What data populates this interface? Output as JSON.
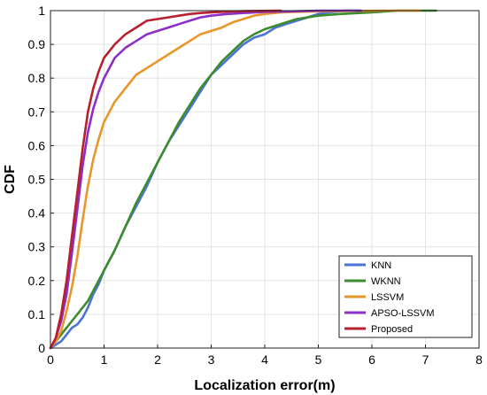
{
  "chart_data": {
    "type": "line",
    "xlabel": "Localization error(m)",
    "ylabel": "CDF",
    "xlim": [
      0,
      8
    ],
    "ylim": [
      0,
      1
    ],
    "xticks": [
      "0",
      "1",
      "2",
      "3",
      "4",
      "5",
      "6",
      "7",
      "8"
    ],
    "yticks": [
      "0",
      "0.1",
      "0.2",
      "0.3",
      "0.4",
      "0.5",
      "0.6",
      "0.7",
      "0.8",
      "0.9",
      "1"
    ],
    "grid": true,
    "legend_position": "bottom-right",
    "series": [
      {
        "name": "KNN",
        "color": "#4a72d8",
        "x": [
          0,
          0.1,
          0.2,
          0.3,
          0.4,
          0.5,
          0.6,
          0.7,
          0.8,
          0.9,
          1.0,
          1.2,
          1.4,
          1.6,
          1.8,
          2.0,
          2.2,
          2.4,
          2.6,
          2.8,
          3.0,
          3.2,
          3.4,
          3.6,
          3.8,
          4.0,
          4.2,
          4.4,
          4.6,
          4.8,
          5.0,
          5.2,
          5.5,
          5.8
        ],
        "y": [
          0,
          0.01,
          0.02,
          0.04,
          0.06,
          0.07,
          0.09,
          0.12,
          0.16,
          0.19,
          0.23,
          0.29,
          0.36,
          0.42,
          0.48,
          0.55,
          0.61,
          0.66,
          0.71,
          0.76,
          0.81,
          0.84,
          0.87,
          0.9,
          0.92,
          0.93,
          0.95,
          0.96,
          0.97,
          0.98,
          0.99,
          0.995,
          1.0,
          1.0
        ]
      },
      {
        "name": "WKNN",
        "color": "#3c8c2e",
        "x": [
          0,
          0.1,
          0.2,
          0.3,
          0.4,
          0.5,
          0.6,
          0.7,
          0.8,
          0.9,
          1.0,
          1.2,
          1.4,
          1.6,
          1.8,
          2.0,
          2.2,
          2.4,
          2.6,
          2.8,
          3.0,
          3.2,
          3.4,
          3.6,
          3.8,
          4.0,
          4.2,
          4.4,
          4.6,
          4.8,
          5.0,
          5.4,
          6.0,
          6.5,
          7.2
        ],
        "y": [
          0,
          0.02,
          0.04,
          0.06,
          0.08,
          0.1,
          0.12,
          0.14,
          0.17,
          0.2,
          0.23,
          0.29,
          0.36,
          0.43,
          0.49,
          0.55,
          0.61,
          0.67,
          0.72,
          0.77,
          0.81,
          0.85,
          0.88,
          0.91,
          0.93,
          0.945,
          0.955,
          0.965,
          0.975,
          0.98,
          0.985,
          0.99,
          0.995,
          1.0,
          1.0
        ]
      },
      {
        "name": "LSSVM",
        "color": "#e8962a",
        "x": [
          0,
          0.1,
          0.2,
          0.3,
          0.4,
          0.5,
          0.6,
          0.7,
          0.8,
          0.9,
          1.0,
          1.1,
          1.2,
          1.3,
          1.4,
          1.5,
          1.6,
          1.8,
          2.0,
          2.2,
          2.4,
          2.6,
          2.8,
          3.0,
          3.2,
          3.4,
          3.6,
          3.8,
          4.0,
          4.3,
          4.8,
          5.5,
          6.2,
          6.9
        ],
        "y": [
          0,
          0.02,
          0.05,
          0.11,
          0.18,
          0.27,
          0.38,
          0.48,
          0.56,
          0.62,
          0.67,
          0.7,
          0.73,
          0.75,
          0.77,
          0.79,
          0.81,
          0.83,
          0.85,
          0.87,
          0.89,
          0.91,
          0.93,
          0.94,
          0.95,
          0.965,
          0.975,
          0.985,
          0.99,
          0.995,
          0.997,
          0.999,
          1.0,
          1.0
        ]
      },
      {
        "name": "APSO-LSSVM",
        "color": "#8b2fc9",
        "x": [
          0,
          0.1,
          0.2,
          0.3,
          0.4,
          0.5,
          0.6,
          0.7,
          0.8,
          0.9,
          1.0,
          1.1,
          1.2,
          1.4,
          1.6,
          1.8,
          2.0,
          2.2,
          2.4,
          2.6,
          2.8,
          3.0,
          3.3,
          3.6,
          4.0,
          4.5,
          5.0,
          5.8
        ],
        "y": [
          0,
          0.03,
          0.08,
          0.16,
          0.28,
          0.41,
          0.54,
          0.64,
          0.71,
          0.76,
          0.8,
          0.83,
          0.86,
          0.89,
          0.91,
          0.93,
          0.94,
          0.95,
          0.96,
          0.97,
          0.98,
          0.985,
          0.99,
          0.993,
          0.996,
          0.998,
          1.0,
          1.0
        ]
      },
      {
        "name": "Proposed",
        "color": "#b8202e",
        "x": [
          0,
          0.1,
          0.2,
          0.3,
          0.4,
          0.5,
          0.6,
          0.7,
          0.8,
          0.9,
          1.0,
          1.1,
          1.2,
          1.4,
          1.6,
          1.8,
          2.0,
          2.2,
          2.4,
          2.6,
          2.8,
          3.0,
          3.3,
          3.7,
          4.3
        ],
        "y": [
          0,
          0.03,
          0.1,
          0.2,
          0.33,
          0.46,
          0.59,
          0.7,
          0.77,
          0.82,
          0.86,
          0.88,
          0.9,
          0.93,
          0.95,
          0.97,
          0.975,
          0.98,
          0.985,
          0.99,
          0.993,
          0.995,
          0.997,
          0.999,
          1.0
        ]
      }
    ]
  }
}
